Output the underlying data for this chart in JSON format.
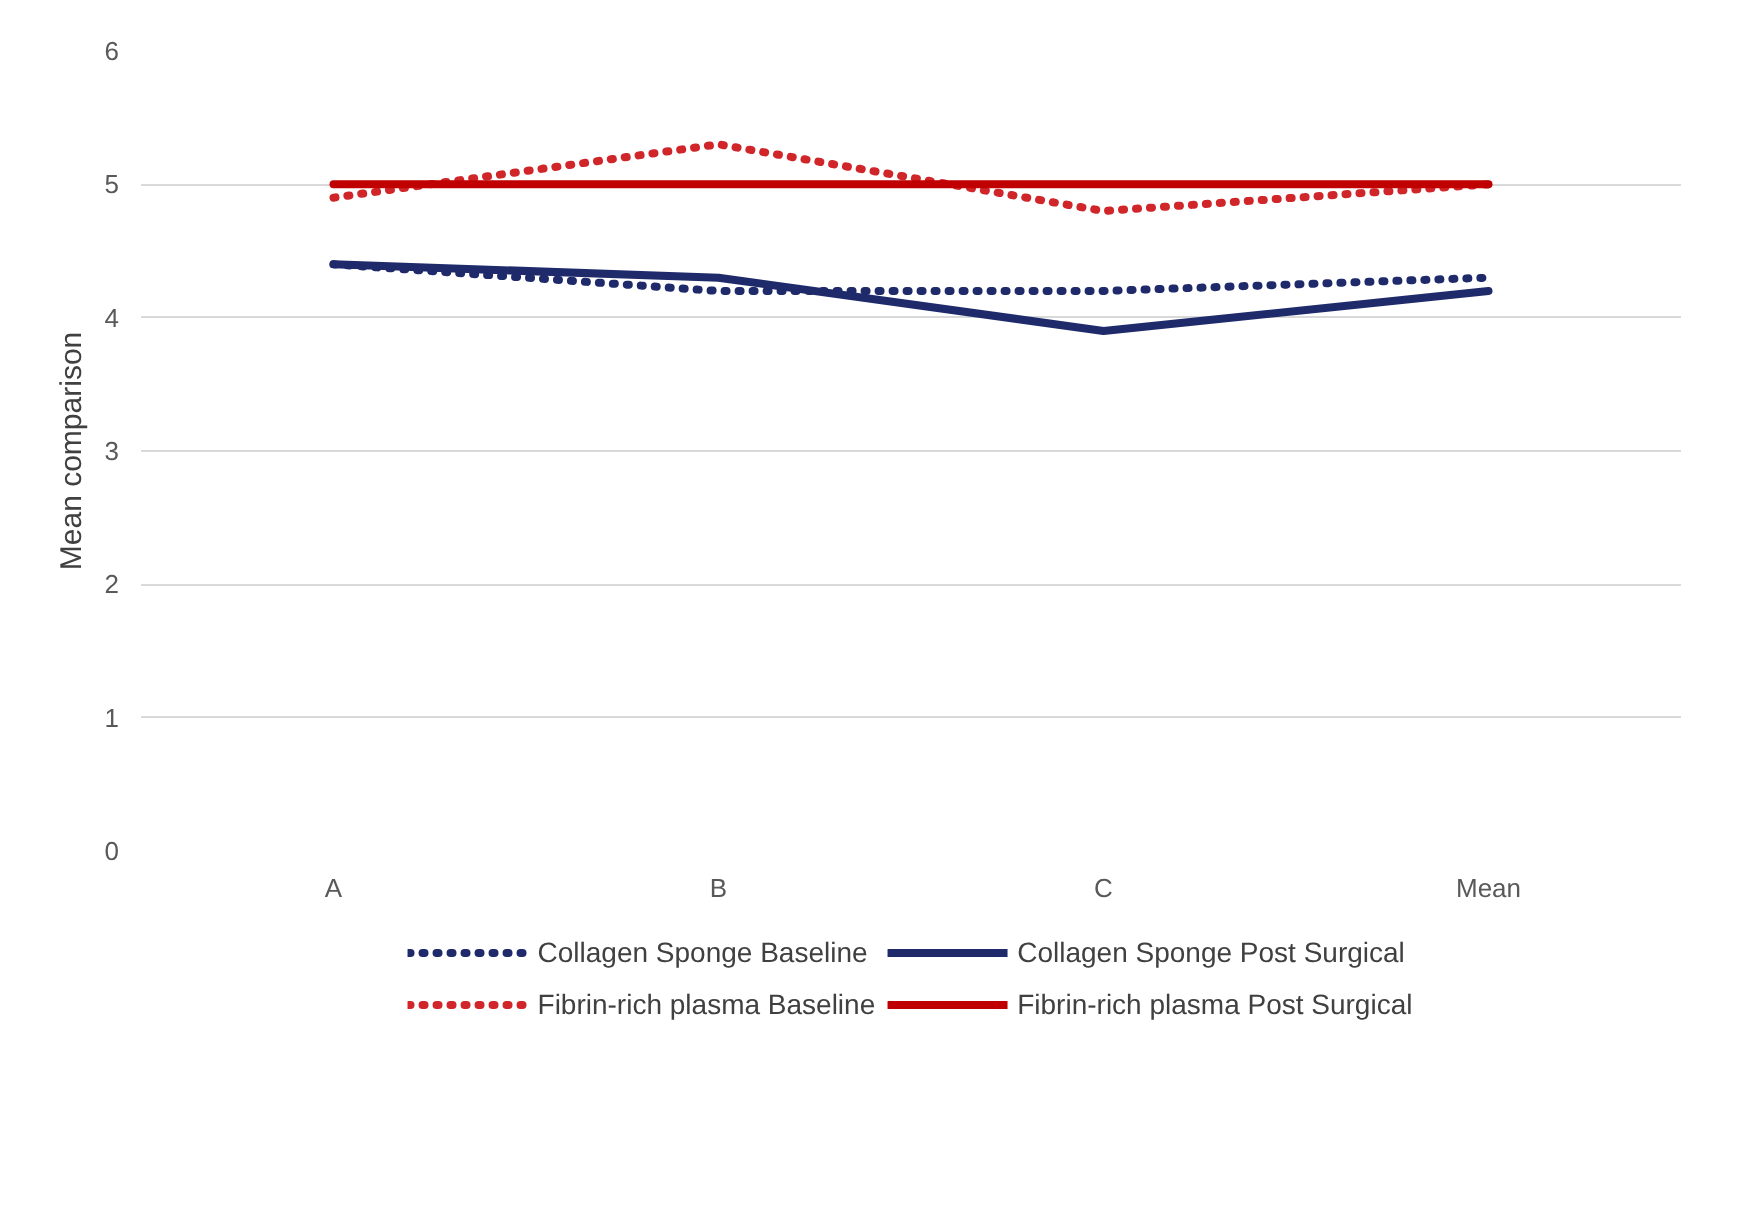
{
  "chart_data": {
    "type": "line",
    "ylabel": "Mean comparison",
    "categories": [
      "A",
      "B",
      "C",
      "Mean"
    ],
    "ylim": [
      0,
      6
    ],
    "yticks": [
      0,
      1,
      2,
      3,
      4,
      5,
      6
    ],
    "grid": "y",
    "legend": "bottom",
    "series": [
      {
        "name": "Collagen Sponge Baseline",
        "color": "#1f2a6b",
        "line_style": "dotted",
        "values": [
          4.4,
          4.2,
          4.2,
          4.3
        ]
      },
      {
        "name": "Collagen Sponge Post Surgical",
        "color": "#1f2a6b",
        "line_style": "solid",
        "values": [
          4.4,
          4.3,
          3.9,
          4.2
        ]
      },
      {
        "name": "Fibrin-rich plasma Baseline",
        "color": "#d0262a",
        "line_style": "dotted",
        "values": [
          4.9,
          5.3,
          4.8,
          5.0
        ]
      },
      {
        "name": "Fibrin-rich plasma Post Surgical",
        "color": "#c00000",
        "line_style": "solid",
        "values": [
          5,
          5,
          5,
          5
        ]
      }
    ]
  }
}
